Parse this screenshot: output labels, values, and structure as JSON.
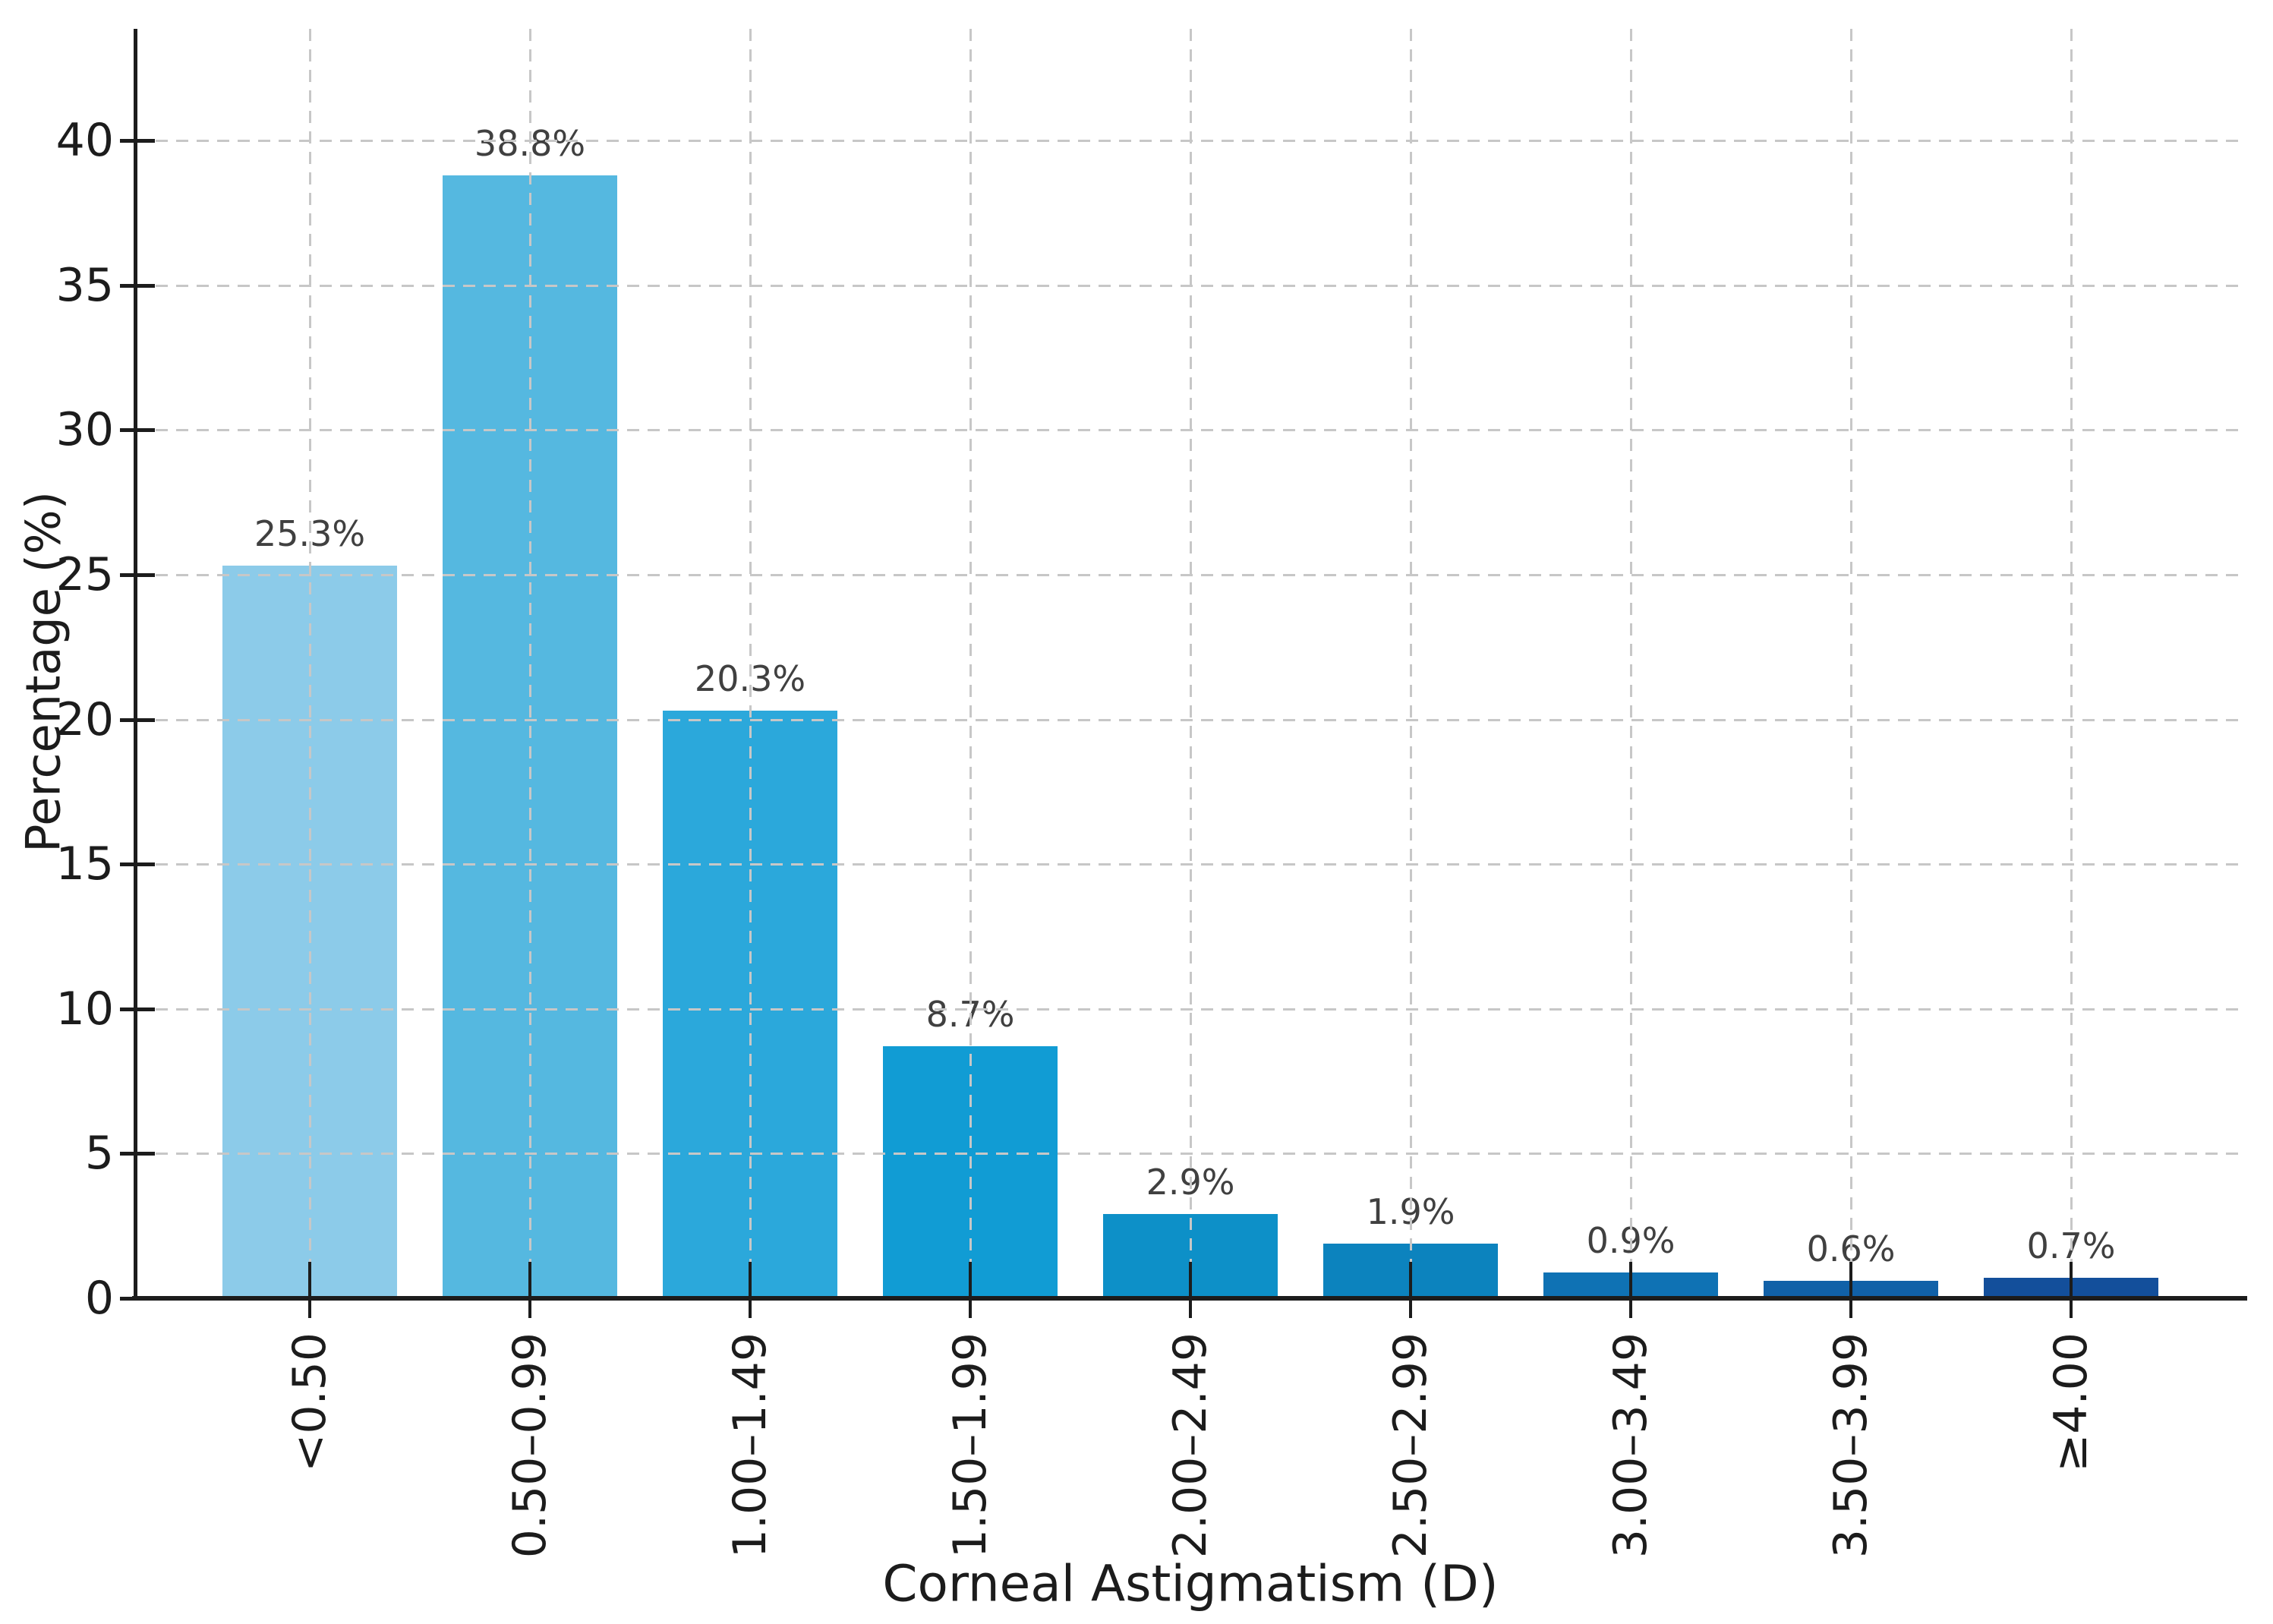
{
  "chart_data": {
    "type": "bar",
    "title": "",
    "xlabel": "Corneal Astigmatism (D)",
    "ylabel": "Percentage (%)",
    "categories": [
      "<0.50",
      "0.50–0.99",
      "1.00–1.49",
      "1.50–1.99",
      "2.00–2.49",
      "2.50–2.99",
      "3.00–3.49",
      "3.50–3.99",
      "≥4.00"
    ],
    "values": [
      25.3,
      38.8,
      20.3,
      8.7,
      2.9,
      1.9,
      0.9,
      0.6,
      0.7
    ],
    "value_labels": [
      "25.3%",
      "38.8%",
      "20.3%",
      "8.7%",
      "2.9%",
      "1.9%",
      "0.9%",
      "0.6%",
      "0.7%"
    ],
    "bar_colors": [
      "#8CCBE9",
      "#55B8E0",
      "#2BA8DB",
      "#119CD4",
      "#0D90C8",
      "#0C83BE",
      "#0F72B4",
      "#1161A8",
      "#134F9B"
    ],
    "yticks": [
      0,
      5,
      10,
      15,
      20,
      25,
      30,
      35,
      40
    ],
    "ylim": [
      0,
      43.8
    ],
    "grid": "dashed",
    "grid_color": "#c7c7c7",
    "axis_color": "#1c1c1c",
    "tick_label_color": "#1c1c1c",
    "value_label_color": "#404040",
    "background": "#ffffff",
    "legend": "none"
  }
}
